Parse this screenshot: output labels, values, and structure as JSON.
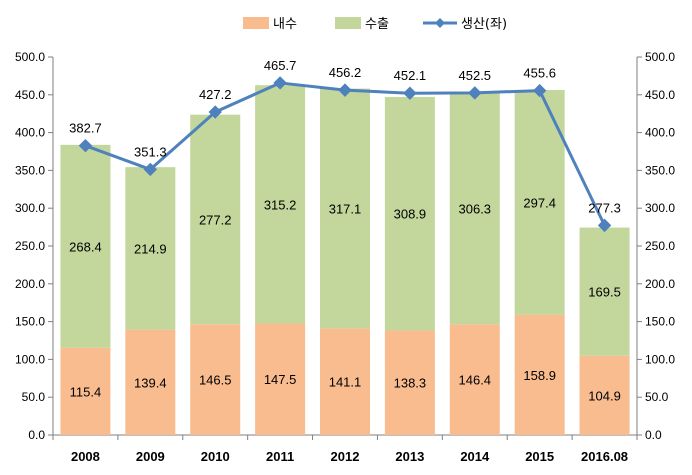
{
  "chart_data": {
    "type": "bar",
    "stacked": true,
    "categories": [
      "2008",
      "2009",
      "2010",
      "2011",
      "2012",
      "2013",
      "2014",
      "2015",
      "2016.08"
    ],
    "series": [
      {
        "name": "내수",
        "kind": "bar",
        "color": "#f9bc8f",
        "values": [
          115.4,
          139.4,
          146.5,
          147.5,
          141.1,
          138.3,
          146.4,
          158.9,
          104.9
        ]
      },
      {
        "name": "수출",
        "kind": "bar",
        "color": "#c3d69b",
        "values": [
          268.4,
          214.9,
          277.2,
          315.2,
          317.1,
          308.9,
          306.3,
          297.4,
          169.5
        ]
      },
      {
        "name": "생산(좌)",
        "kind": "line",
        "color": "#4f81bd",
        "values": [
          382.7,
          351.3,
          427.2,
          465.7,
          456.2,
          452.1,
          452.5,
          455.6,
          277.3
        ]
      }
    ],
    "y_left": {
      "min": 0,
      "max": 500,
      "step": 50,
      "ticks": [
        "0.0",
        "50.0",
        "100.0",
        "150.0",
        "200.0",
        "250.0",
        "300.0",
        "350.0",
        "400.0",
        "450.0",
        "500.0"
      ]
    },
    "y_right": {
      "min": 0,
      "max": 500,
      "step": 50,
      "ticks": [
        "0.0",
        "50.0",
        "100.0",
        "150.0",
        "200.0",
        "250.0",
        "300.0",
        "350.0",
        "400.0",
        "450.0",
        "500.0"
      ]
    },
    "gridlines": false,
    "legend_position": "top-center"
  }
}
